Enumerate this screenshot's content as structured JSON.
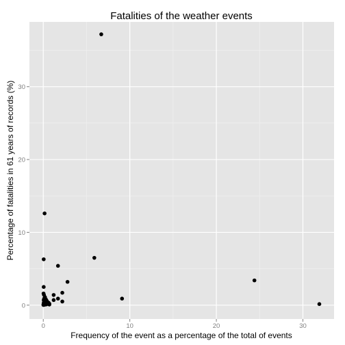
{
  "chart_data": {
    "type": "scatter",
    "title": "Fatalities of the weather events",
    "xlabel": "Frequency of the event as a percentage of the total of events",
    "ylabel": "Percentage of fatalities  in 61 years of records (%)",
    "xlim": [
      -1.6,
      33.6
    ],
    "ylim": [
      -1.9,
      38.9
    ],
    "x_ticks": [
      0,
      10,
      20,
      30
    ],
    "y_ticks": [
      0,
      10,
      20,
      30
    ],
    "grid": true,
    "legend": "none",
    "colors": {
      "panel": "#e5e5e5",
      "major_grid": "#ffffff",
      "minor_grid": "#f2f2f2",
      "point": "#000000",
      "tick_text": "#7f7f7f"
    },
    "points": [
      {
        "x": 6.7,
        "y": 37.2
      },
      {
        "x": 0.15,
        "y": 12.6
      },
      {
        "x": 0.05,
        "y": 6.3
      },
      {
        "x": 5.9,
        "y": 6.5
      },
      {
        "x": 1.7,
        "y": 5.4
      },
      {
        "x": 24.4,
        "y": 3.4
      },
      {
        "x": 2.8,
        "y": 3.2
      },
      {
        "x": 0.05,
        "y": 2.5
      },
      {
        "x": 2.2,
        "y": 1.7
      },
      {
        "x": 0.03,
        "y": 1.6
      },
      {
        "x": 0.08,
        "y": 1.4
      },
      {
        "x": 1.2,
        "y": 1.4
      },
      {
        "x": 0.2,
        "y": 1.1
      },
      {
        "x": 9.1,
        "y": 0.9
      },
      {
        "x": 1.7,
        "y": 0.9
      },
      {
        "x": 0.1,
        "y": 0.9
      },
      {
        "x": 0.3,
        "y": 0.8
      },
      {
        "x": 1.2,
        "y": 0.7
      },
      {
        "x": 0.05,
        "y": 0.7
      },
      {
        "x": 0.4,
        "y": 0.6
      },
      {
        "x": 0.1,
        "y": 0.5
      },
      {
        "x": 2.2,
        "y": 0.5
      },
      {
        "x": 0.2,
        "y": 0.4
      },
      {
        "x": 0.6,
        "y": 0.35
      },
      {
        "x": 0.05,
        "y": 0.3
      },
      {
        "x": 0.7,
        "y": 0.2
      },
      {
        "x": 0.25,
        "y": 0.2
      },
      {
        "x": 0.1,
        "y": 0.15
      },
      {
        "x": 31.9,
        "y": 0.15
      },
      {
        "x": 0.02,
        "y": 0.1
      },
      {
        "x": 0.35,
        "y": 0.1
      },
      {
        "x": 0.7,
        "y": 0.08
      },
      {
        "x": 0.15,
        "y": 0.05
      },
      {
        "x": 0.02,
        "y": 0.02
      }
    ]
  }
}
